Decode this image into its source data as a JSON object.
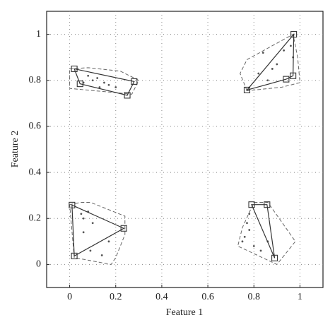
{
  "chart_data": {
    "type": "scatter",
    "xlabel": "Feature 1",
    "ylabel": "Feature 2",
    "xlim": [
      -0.1,
      1.1
    ],
    "ylim": [
      -0.1,
      1.1
    ],
    "xticks": [
      0,
      0.2,
      0.4,
      0.6,
      0.8,
      1
    ],
    "yticks": [
      0,
      0.2,
      0.4,
      0.6,
      0.8,
      1
    ],
    "grid": true,
    "series": [
      {
        "style": "points",
        "color": "#555555",
        "x": [
          0.08,
          0.1,
          0.12,
          0.15,
          0.17,
          0.2,
          0.06,
          0.13,
          0.82,
          0.84,
          0.88,
          0.9,
          0.93,
          0.96,
          0.97,
          0.86,
          0.05,
          0.06,
          0.08,
          0.1,
          0.06,
          0.09,
          0.14,
          0.17,
          0.78,
          0.77,
          0.76,
          0.75,
          0.8,
          0.83,
          0.86,
          0.78
        ],
        "y": [
          0.82,
          0.8,
          0.81,
          0.79,
          0.78,
          0.77,
          0.79,
          0.77,
          0.83,
          0.92,
          0.85,
          0.87,
          0.93,
          0.95,
          0.9,
          0.8,
          0.22,
          0.2,
          0.23,
          0.18,
          0.14,
          0.06,
          0.04,
          0.1,
          0.22,
          0.18,
          0.12,
          0.1,
          0.08,
          0.06,
          0.1,
          0.15
        ]
      },
      {
        "style": "polygon",
        "color": "#333333",
        "x": [
          0.02,
          0.28,
          0.25,
          0.045
        ],
        "y": [
          0.85,
          0.795,
          0.735,
          0.785
        ]
      },
      {
        "style": "polygon",
        "color": "#333333",
        "x": [
          0.77,
          0.973,
          0.97,
          0.94
        ],
        "y": [
          0.758,
          1.0,
          0.82,
          0.805
        ]
      },
      {
        "style": "polygon",
        "color": "#333333",
        "x": [
          0.01,
          0.235,
          0.02
        ],
        "y": [
          0.258,
          0.157,
          0.037
        ]
      },
      {
        "style": "polygon",
        "color": "#333333",
        "x": [
          0.79,
          0.857,
          0.89
        ],
        "y": [
          0.26,
          0.26,
          0.028
        ]
      },
      {
        "style": "hull",
        "color": "#666666",
        "x": [
          0.0,
          0.08,
          0.22,
          0.3,
          0.27,
          0.0
        ],
        "y": [
          0.85,
          0.855,
          0.84,
          0.8,
          0.74,
          0.765
        ]
      },
      {
        "style": "hull",
        "color": "#666666",
        "x": [
          0.77,
          0.74,
          0.77,
          0.97,
          0.99,
          1.0,
          0.92
        ],
        "y": [
          0.755,
          0.83,
          0.89,
          1.0,
          0.9,
          0.79,
          0.77
        ]
      },
      {
        "style": "hull",
        "color": "#666666",
        "x": [
          0.0,
          0.05,
          0.09,
          0.24,
          0.24,
          0.2,
          0.18,
          0.02
        ],
        "y": [
          0.26,
          0.27,
          0.27,
          0.21,
          0.13,
          0.03,
          0.0,
          0.03
        ]
      },
      {
        "style": "hull",
        "color": "#666666",
        "x": [
          0.8,
          0.86,
          0.91,
          0.98,
          0.9,
          0.73,
          0.75
        ],
        "y": [
          0.27,
          0.27,
          0.2,
          0.1,
          0.0,
          0.08,
          0.16
        ]
      }
    ]
  }
}
